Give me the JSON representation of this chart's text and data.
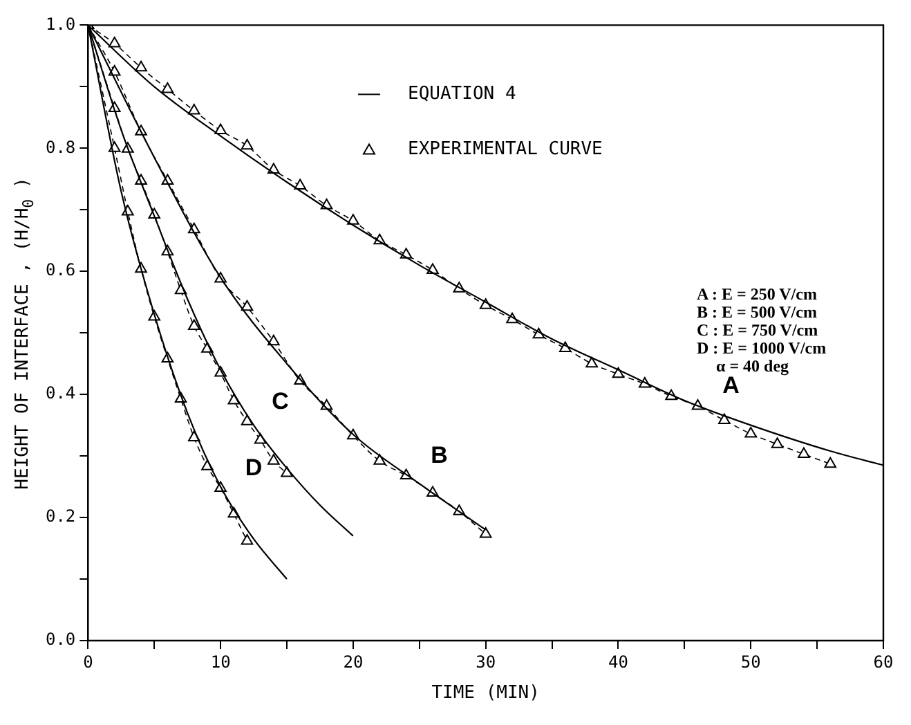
{
  "chart_data": {
    "type": "line",
    "xlabel": "TIME (MIN)",
    "ylabel": "HEIGHT OF INTERFACE , (H/H$_{0}$ )",
    "xlim": [
      0,
      60
    ],
    "xticks": [
      0,
      {
        "value": 5,
        "label": null
      },
      10,
      {
        "value": 15,
        "label": null
      },
      20,
      {
        "value": 25,
        "label": null
      },
      30,
      {
        "value": 35,
        "label": null
      },
      40,
      {
        "value": 45,
        "label": null
      },
      50,
      {
        "value": 55,
        "label": null
      },
      60
    ],
    "ylim": [
      0,
      1
    ],
    "yticks": [
      {
        "value": 0,
        "label": "0.0"
      },
      {
        "value": 0.1,
        "label": null
      },
      0.2,
      {
        "value": 0.3,
        "label": null
      },
      0.4,
      {
        "value": 0.5,
        "label": null
      },
      0.6,
      {
        "value": 0.7,
        "label": null
      },
      0.8,
      {
        "value": 0.9,
        "label": null
      },
      {
        "value": 1,
        "label": "1.0"
      }
    ],
    "grid": false,
    "legend": "top right",
    "series": [
      {
        "name": "EQUATION 4",
        "marker": "none",
        "line_style": "solid",
        "color": "#000000",
        "x": [
          0,
          5,
          10,
          15,
          20,
          25,
          30,
          35,
          40,
          45,
          50,
          56,
          60
        ],
        "values": [
          1,
          0.9,
          0.82,
          0.745,
          0.675,
          0.61,
          0.55,
          0.49,
          0.44,
          0.39,
          0.35,
          0.308,
          0.285
        ]
      },
      {
        "marker": "none",
        "line_style": "solid",
        "color": "#000000",
        "x": [
          0,
          5,
          10,
          15,
          20,
          25,
          30
        ],
        "values": [
          1,
          0.785,
          0.59,
          0.45,
          0.335,
          0.255,
          0.18
        ]
      },
      {
        "marker": "none",
        "line_style": "solid",
        "color": "#000000",
        "x": [
          0,
          2.5,
          5,
          7.5,
          10,
          12.5,
          15,
          17.5,
          20
        ],
        "values": [
          1,
          0.83,
          0.69,
          0.555,
          0.44,
          0.35,
          0.28,
          0.22,
          0.17
        ]
      },
      {
        "marker": "none",
        "line_style": "solid",
        "color": "#000000",
        "x": [
          0,
          2.5,
          5,
          7.5,
          10,
          12.5,
          15
        ],
        "values": [
          1,
          0.73,
          0.53,
          0.37,
          0.25,
          0.165,
          0.1
        ]
      },
      {
        "name": "EXPERIMENTAL CURVE",
        "marker": "triangle",
        "line_style": "dashed",
        "color": "#000000",
        "x": [
          0,
          2,
          4,
          6,
          8,
          10,
          12,
          14,
          16,
          18,
          20,
          22,
          24,
          26,
          28,
          30,
          32,
          34,
          36,
          38,
          40,
          42,
          44,
          46,
          48,
          50,
          52,
          54,
          56
        ],
        "values": [
          1,
          0.97,
          0.931,
          0.896,
          0.861,
          0.829,
          0.804,
          0.765,
          0.739,
          0.707,
          0.682,
          0.65,
          0.627,
          0.602,
          0.572,
          0.545,
          0.522,
          0.497,
          0.475,
          0.45,
          0.433,
          0.417,
          0.397,
          0.381,
          0.358,
          0.336,
          0.319,
          0.303,
          0.287
        ]
      },
      {
        "marker": "triangle",
        "line_style": "dashed",
        "color": "#000000",
        "x": [
          0,
          2,
          4,
          6,
          8,
          10,
          12,
          14,
          16,
          18,
          20,
          22,
          24,
          26,
          28,
          30
        ],
        "values": [
          1,
          0.924,
          0.827,
          0.747,
          0.668,
          0.588,
          0.542,
          0.486,
          0.422,
          0.381,
          0.333,
          0.292,
          0.268,
          0.24,
          0.21,
          0.173
        ]
      },
      {
        "marker": "triangle",
        "line_style": "dashed",
        "color": "#000000",
        "x": [
          0,
          2,
          3,
          4,
          5,
          6,
          7,
          8,
          9,
          10,
          11,
          12,
          13,
          14,
          15
        ],
        "values": [
          1,
          0.865,
          0.799,
          0.747,
          0.692,
          0.632,
          0.569,
          0.511,
          0.474,
          0.435,
          0.39,
          0.356,
          0.326,
          0.292,
          0.272
        ]
      },
      {
        "marker": "triangle",
        "line_style": "dashed",
        "color": "#000000",
        "x": [
          0,
          2,
          3,
          4,
          5,
          6,
          7,
          8,
          9,
          10,
          11,
          12
        ],
        "values": [
          1,
          0.8,
          0.697,
          0.604,
          0.526,
          0.458,
          0.393,
          0.33,
          0.283,
          0.248,
          0.206,
          0.162
        ]
      }
    ],
    "annotations": [
      "A : E = 250 V/cm",
      "B : E = 500 V/cm",
      "C : E = 750 V/cm",
      "D : E = 1000 V/cm",
      "α = 40 deg",
      "A",
      "B",
      "C",
      "D"
    ]
  }
}
